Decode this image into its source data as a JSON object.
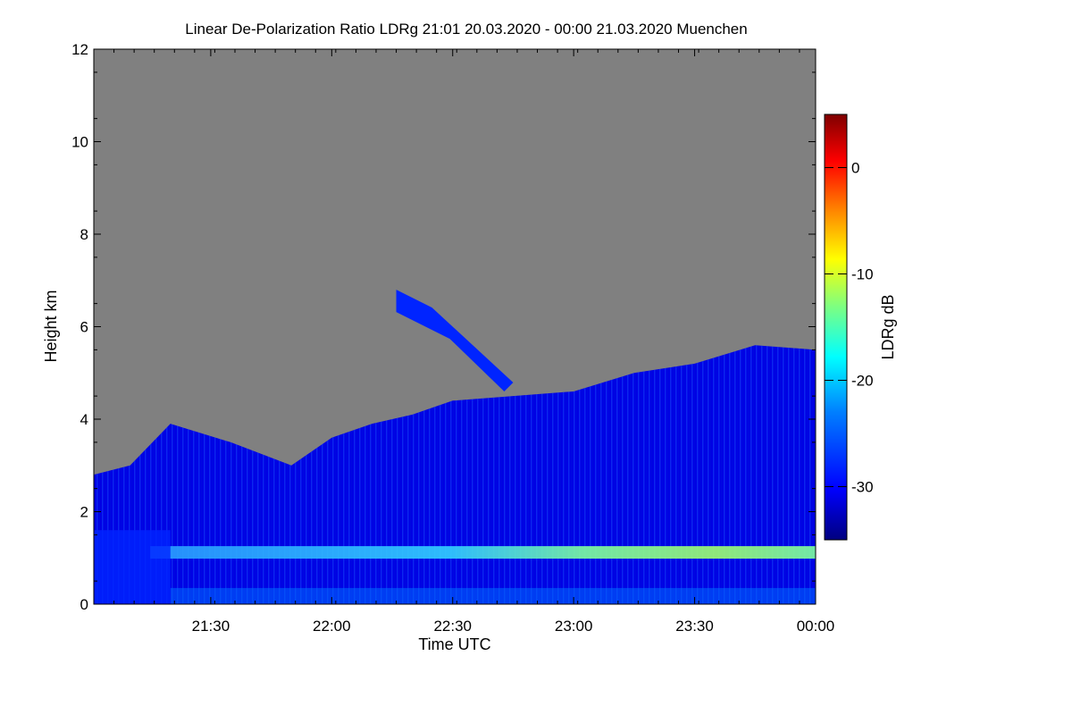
{
  "chart_data": {
    "type": "heatmap",
    "title": "Linear De-Polarization Ratio LDRg   21:01 20.03.2020 - 00:00 21.03.2020 Muenchen",
    "xlabel": "Time UTC",
    "ylabel": "Height km",
    "x_range": [
      "21:01",
      "00:00"
    ],
    "x_ticks": [
      "21:30",
      "22:00",
      "22:30",
      "23:00",
      "23:30",
      "00:00"
    ],
    "ylim": [
      0,
      12
    ],
    "y_ticks": [
      0,
      2,
      4,
      6,
      8,
      10,
      12
    ],
    "background_color": "#808080",
    "colorbar": {
      "label": "LDRg dB",
      "range": [
        -35,
        5
      ],
      "ticks": [
        0,
        -10,
        -20,
        -30
      ],
      "colors": [
        "#00007f",
        "#0000ff",
        "#007fff",
        "#00ffff",
        "#7fff7f",
        "#ffff00",
        "#ff7f00",
        "#ff0000",
        "#7f0000"
      ]
    },
    "layers": [
      {
        "name": "cloud-top",
        "top_km": [
          {
            "t": "21:01",
            "h": 2.8
          },
          {
            "t": "21:10",
            "h": 3.0
          },
          {
            "t": "21:20",
            "h": 3.9
          },
          {
            "t": "21:35",
            "h": 3.5
          },
          {
            "t": "21:50",
            "h": 3.0
          },
          {
            "t": "22:00",
            "h": 3.6
          },
          {
            "t": "22:10",
            "h": 3.9
          },
          {
            "t": "22:20",
            "h": 4.1
          },
          {
            "t": "22:30",
            "h": 4.4
          },
          {
            "t": "22:45",
            "h": 4.5
          },
          {
            "t": "23:00",
            "h": 4.6
          },
          {
            "t": "23:15",
            "h": 5.0
          },
          {
            "t": "23:30",
            "h": 5.2
          },
          {
            "t": "23:45",
            "h": 5.6
          },
          {
            "t": "00:00",
            "h": 5.5
          }
        ],
        "ldr_db": -31
      },
      {
        "name": "aerosol-layer",
        "height_km": 1.1,
        "ldr_db_early": -22,
        "ldr_db_late": -14
      },
      {
        "name": "elevated-cirrus",
        "from": "22:16",
        "to": "22:45",
        "height_km": [
          4.6,
          6.8
        ],
        "ldr_db": -28
      }
    ]
  }
}
